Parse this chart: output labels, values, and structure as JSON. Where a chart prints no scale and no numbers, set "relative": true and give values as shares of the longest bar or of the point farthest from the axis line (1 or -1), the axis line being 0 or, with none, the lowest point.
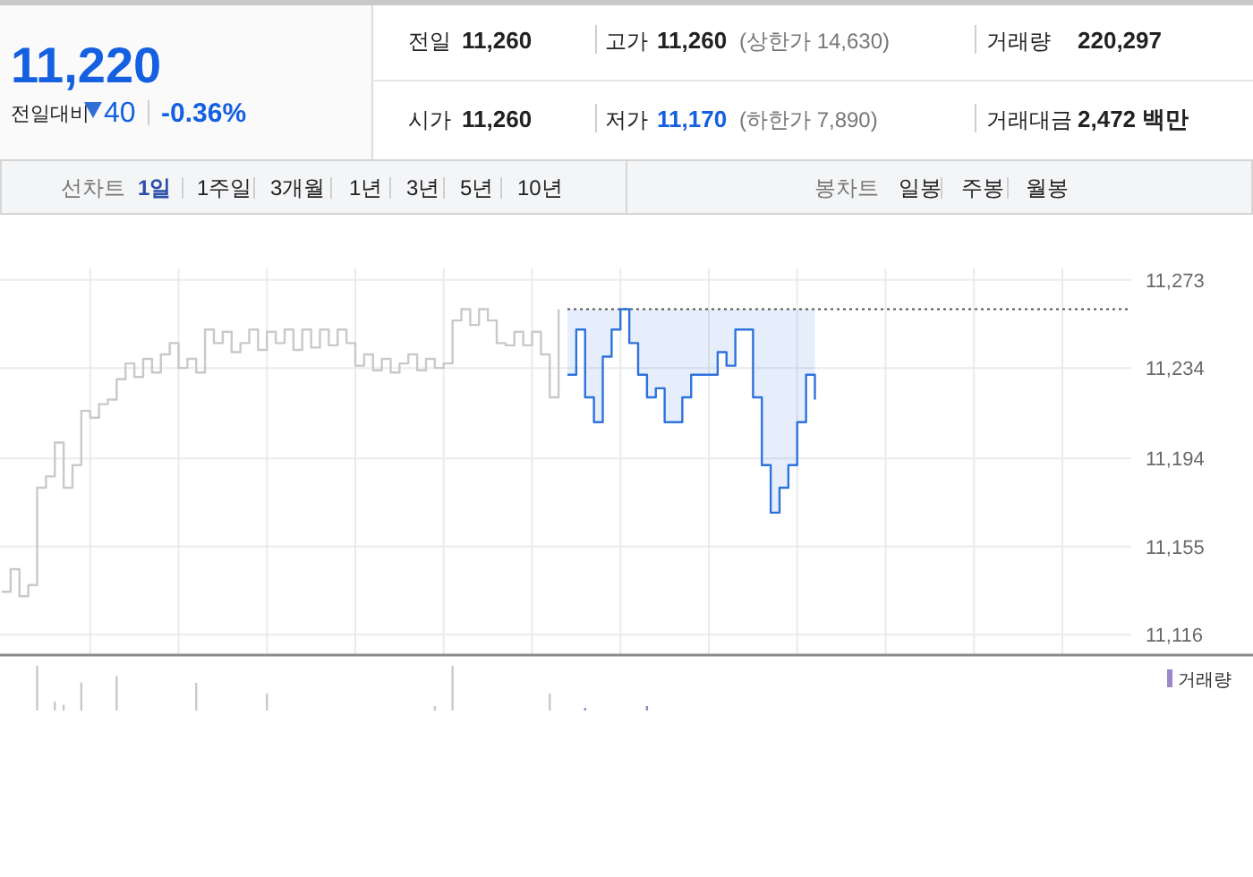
{
  "chart_data": [
    {
      "type": "other",
      "annotations": [
        "11,220",
        "전일대비",
        "40",
        "-0.36%",
        "전일",
        "11,260",
        "고가",
        "11,260",
        "(상한가 14,630)",
        "거래량",
        "220,297",
        "시가",
        "11,260",
        "저가",
        "11,170",
        "(하한가 7,890)",
        "거래대금",
        "2,472 백만",
        "선차트",
        "1일",
        "1주일",
        "3개월",
        "1년",
        "3년",
        "5년",
        "10년",
        "봉차트",
        "일봉",
        "주봉",
        "월봉"
      ]
    },
    {
      "type": "step",
      "ylim": [
        11107,
        11278
      ],
      "yticks": [
        {
          "value": 11273,
          "label": "11,273"
        },
        {
          "value": 11234,
          "label": "11,234"
        },
        {
          "value": 11194,
          "label": "11,194"
        },
        {
          "value": 11155,
          "label": "11,155"
        },
        {
          "value": 11116,
          "label": "11,116"
        }
      ],
      "grid": true,
      "categories": [
        null,
        null,
        null,
        null,
        null,
        null,
        null,
        null,
        null,
        null,
        null,
        null,
        null,
        null,
        null,
        null,
        null,
        null,
        null,
        null,
        null,
        null,
        null,
        null,
        null,
        null,
        null,
        null,
        null,
        null,
        null,
        null,
        null,
        null,
        null,
        null,
        null,
        null,
        null,
        null,
        null,
        null,
        null,
        null,
        null,
        null,
        null,
        null,
        null,
        null,
        null,
        null,
        null,
        null,
        null,
        null,
        null,
        null,
        null,
        null,
        null,
        null,
        null,
        null,
        null,
        null,
        null,
        null,
        null,
        null,
        null,
        null,
        null,
        null,
        null,
        null,
        null,
        null,
        null,
        null,
        null,
        null,
        null,
        null,
        null,
        null,
        null,
        null,
        null,
        null,
        null,
        null,
        null,
        null,
        null,
        null,
        null,
        null,
        null,
        null,
        null,
        null,
        null,
        null,
        null,
        null,
        null,
        null,
        null,
        null,
        null,
        null,
        null,
        null,
        null,
        null,
        null,
        null,
        null,
        null,
        null,
        null,
        null,
        null,
        null,
        null,
        null,
        null
      ],
      "ref_lines": [
        {
          "axis": "y",
          "value": 11260,
          "color": "#555555",
          "line_style": "dotted"
        }
      ],
      "series": [
        {
          "color": "#c8c9cd",
          "values": [
            11135,
            11145,
            11133,
            11138,
            11181,
            11186,
            11201,
            11181,
            11191,
            11215,
            11212,
            11218,
            11220,
            11229,
            11236,
            11230,
            11238,
            11232,
            11240,
            11245,
            11234,
            11238,
            11232,
            11251,
            11245,
            11250,
            11241,
            11245,
            11251,
            11242,
            11250,
            11245,
            11251,
            11242,
            11251,
            11243,
            11251,
            11244,
            11251,
            11245,
            11235,
            11240,
            11233,
            11238,
            11232,
            11236,
            11240,
            11233,
            11238,
            11234,
            11236,
            11255,
            11260,
            11253,
            11260,
            11255,
            11245,
            11244,
            11250,
            11244,
            11250,
            11240,
            11221,
            11260,
            null,
            null,
            null,
            null,
            null,
            null,
            null,
            null,
            null,
            null,
            null,
            null,
            null,
            null,
            null,
            null,
            null,
            null,
            null,
            null,
            null,
            null,
            null,
            null,
            null,
            null,
            null,
            null,
            null,
            null,
            null,
            null,
            null,
            null,
            null,
            null,
            null,
            null,
            null,
            null,
            null,
            null,
            null,
            null,
            null,
            null,
            null,
            null,
            null,
            null,
            null,
            null,
            null,
            null,
            null,
            null,
            null,
            null,
            null,
            null,
            null,
            null,
            null,
            null
          ]
        },
        {
          "color": "#2e72dc",
          "upper": [
            null,
            null,
            null,
            null,
            null,
            null,
            null,
            null,
            null,
            null,
            null,
            null,
            null,
            null,
            null,
            null,
            null,
            null,
            null,
            null,
            null,
            null,
            null,
            null,
            null,
            null,
            null,
            null,
            null,
            null,
            null,
            null,
            null,
            null,
            null,
            null,
            null,
            null,
            null,
            null,
            null,
            null,
            null,
            null,
            null,
            null,
            null,
            null,
            null,
            null,
            null,
            null,
            null,
            null,
            null,
            null,
            null,
            null,
            null,
            null,
            null,
            null,
            null,
            null,
            11260,
            11260,
            11260,
            11260,
            11260,
            11260,
            11260,
            11260,
            11260,
            11260,
            11260,
            11260,
            11260,
            11260,
            11260,
            11260,
            11260,
            11260,
            11260,
            11260,
            11260,
            11260,
            11260,
            11260,
            11260,
            11260,
            11260,
            11260,
            11260,
            null,
            null,
            null,
            null,
            null,
            null,
            null,
            null,
            null,
            null,
            null,
            null,
            null,
            null,
            null,
            null,
            null,
            null,
            null,
            null,
            null,
            null,
            null,
            null,
            null,
            null,
            null,
            null,
            null,
            null,
            null,
            null,
            null,
            null,
            null
          ],
          "lower": [
            null,
            null,
            null,
            null,
            null,
            null,
            null,
            null,
            null,
            null,
            null,
            null,
            null,
            null,
            null,
            null,
            null,
            null,
            null,
            null,
            null,
            null,
            null,
            null,
            null,
            null,
            null,
            null,
            null,
            null,
            null,
            null,
            null,
            null,
            null,
            null,
            null,
            null,
            null,
            null,
            null,
            null,
            null,
            null,
            null,
            null,
            null,
            null,
            null,
            null,
            null,
            null,
            null,
            null,
            null,
            null,
            null,
            null,
            null,
            null,
            null,
            null,
            null,
            null,
            11231,
            11251,
            11221,
            11210,
            11239,
            11251,
            11260,
            11245,
            11231,
            11221,
            11225,
            11210,
            11210,
            11221,
            11231,
            11231,
            11231,
            11241,
            11235,
            11251,
            11251,
            11221,
            11191,
            11170,
            11181,
            11191,
            11210,
            11231,
            11220,
            null,
            null,
            null,
            null,
            null,
            null,
            null,
            null,
            null,
            null,
            null,
            null,
            null,
            null,
            null,
            null,
            null,
            null,
            null,
            null,
            null,
            null,
            null,
            null,
            null,
            null,
            null,
            null,
            null,
            null,
            null,
            null,
            null,
            null,
            null
          ],
          "values": [
            null,
            null,
            null,
            null,
            null,
            null,
            null,
            null,
            null,
            null,
            null,
            null,
            null,
            null,
            null,
            null,
            null,
            null,
            null,
            null,
            null,
            null,
            null,
            null,
            null,
            null,
            null,
            null,
            null,
            null,
            null,
            null,
            null,
            null,
            null,
            null,
            null,
            null,
            null,
            null,
            null,
            null,
            null,
            null,
            null,
            null,
            null,
            null,
            null,
            null,
            null,
            null,
            null,
            null,
            null,
            null,
            null,
            null,
            null,
            null,
            null,
            null,
            null,
            null,
            11231,
            11251,
            11221,
            11210,
            11239,
            11251,
            11260,
            11245,
            11231,
            11221,
            11225,
            11210,
            11210,
            11221,
            11231,
            11231,
            11231,
            11241,
            11235,
            11251,
            11251,
            11221,
            11191,
            11170,
            11181,
            11191,
            11210,
            11231,
            11220,
            null,
            null,
            null,
            null,
            null,
            null,
            null,
            null,
            null,
            null,
            null,
            null,
            null,
            null,
            null,
            null,
            null,
            null,
            null,
            null,
            null,
            null,
            null,
            null,
            null,
            null,
            null,
            null,
            null,
            null,
            null,
            null,
            null,
            null,
            null
          ]
        }
      ]
    },
    {
      "type": "bar",
      "relative": true,
      "legend": "top right",
      "categories": [
        null,
        null,
        null,
        null,
        null,
        null,
        null,
        null,
        null,
        null,
        null,
        null,
        null,
        null,
        null,
        null,
        null,
        null,
        null,
        null,
        null,
        null,
        null,
        null,
        null,
        null,
        null,
        null,
        null,
        null,
        null,
        null,
        null,
        null,
        null,
        null,
        null,
        null,
        null,
        null,
        null,
        null,
        null,
        null,
        null,
        null,
        null,
        null,
        null,
        null,
        null,
        null,
        null,
        null,
        null,
        null,
        null,
        null,
        null,
        null,
        null,
        null,
        null,
        null,
        null,
        null,
        null,
        null,
        null,
        null,
        null,
        null,
        null,
        null,
        null,
        null,
        null,
        null,
        null,
        null,
        null,
        null,
        null,
        null,
        null,
        null,
        null,
        null,
        null,
        null,
        null,
        null,
        null,
        null,
        null,
        null,
        null,
        null,
        null,
        null,
        null,
        null,
        null,
        null,
        null,
        null,
        null,
        null,
        null,
        null,
        null,
        null,
        null,
        null,
        null,
        null,
        null,
        null,
        null,
        null,
        null,
        null,
        null,
        null,
        null,
        null,
        null,
        null
      ],
      "series": [
        {
          "color": "#c8c9cd",
          "values": [
            null,
            null,
            null,
            null,
            1,
            null,
            0.2,
            0.13,
            null,
            0.63,
            null,
            null,
            null,
            0.77,
            null,
            null,
            null,
            null,
            null,
            null,
            null,
            null,
            0.62,
            null,
            null,
            null,
            null,
            null,
            null,
            null,
            0.38,
            null,
            null,
            null,
            null,
            null,
            null,
            null,
            null,
            null,
            null,
            null,
            null,
            null,
            null,
            null,
            null,
            null,
            null,
            0.1,
            null,
            1,
            null,
            null,
            null,
            null,
            null,
            null,
            null,
            null,
            null,
            null,
            0.38,
            null,
            null,
            null,
            null,
            null,
            null,
            null,
            null,
            null,
            null,
            null,
            null,
            null,
            null,
            null,
            null,
            null,
            null,
            null,
            null,
            null,
            null,
            null,
            null,
            null,
            null,
            null,
            null,
            null,
            null,
            null,
            null,
            null,
            null,
            null,
            null,
            null,
            null,
            null,
            null,
            null,
            null,
            null,
            null,
            null,
            null,
            null,
            null,
            null,
            null,
            null,
            null,
            null,
            null,
            null,
            null,
            null,
            null,
            null,
            null,
            null,
            null,
            null,
            null,
            null
          ]
        },
        {
          "name": "거래량",
          "color": "#9b87c9",
          "values": [
            null,
            null,
            null,
            null,
            null,
            null,
            null,
            null,
            null,
            null,
            null,
            null,
            null,
            null,
            null,
            null,
            null,
            null,
            null,
            null,
            null,
            null,
            null,
            null,
            null,
            null,
            null,
            null,
            null,
            null,
            null,
            null,
            null,
            null,
            null,
            null,
            null,
            null,
            null,
            null,
            null,
            null,
            null,
            null,
            null,
            null,
            null,
            null,
            null,
            null,
            null,
            null,
            null,
            null,
            null,
            null,
            null,
            null,
            null,
            null,
            null,
            null,
            null,
            null,
            null,
            null,
            0.06,
            null,
            null,
            null,
            null,
            null,
            null,
            0.1,
            null,
            null,
            null,
            null,
            null,
            null,
            null,
            null,
            null,
            null,
            null,
            null,
            null,
            null,
            null,
            null,
            null,
            null,
            null,
            null,
            null,
            null,
            null,
            null,
            null,
            null,
            null,
            null,
            null,
            null,
            null,
            null,
            null,
            null,
            null,
            null,
            null,
            null,
            null,
            null,
            null,
            null,
            null,
            null,
            null,
            null,
            null,
            null,
            null,
            null,
            null,
            null,
            null,
            null
          ]
        }
      ]
    }
  ]
}
